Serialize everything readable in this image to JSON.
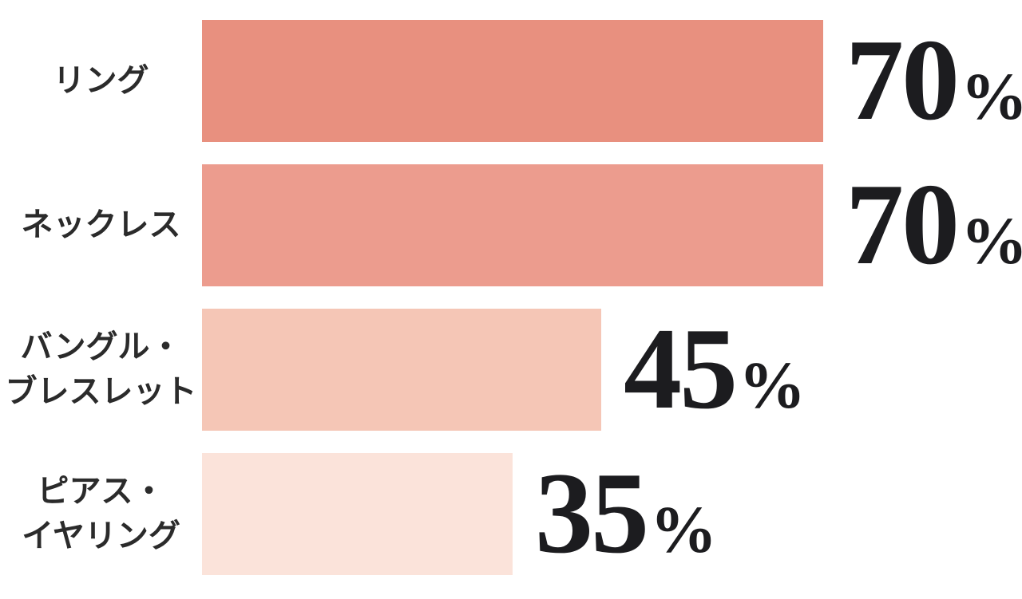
{
  "chart_data": {
    "type": "bar",
    "orientation": "horizontal",
    "title": "",
    "xlabel": "",
    "ylabel": "",
    "xlim": [
      0,
      100
    ],
    "grid": false,
    "axis_lines": "none",
    "legend": "none",
    "unit": "%",
    "value_label_position": "right-of-bar",
    "background_color": "#FFFFFF",
    "label_text_color": "#2B2B2B",
    "value_text_color": "#1C1C1F",
    "categories": [
      "リング",
      "ネックレス",
      "バングル・ブレスレット",
      "ピアス・イヤリング"
    ],
    "rows": [
      {
        "label_lines": [
          "リング"
        ],
        "value": 70,
        "value_text": "70",
        "unit": "%",
        "bar_color": "#E8907F"
      },
      {
        "label_lines": [
          "ネックレス"
        ],
        "value": 70,
        "value_text": "70",
        "unit": "%",
        "bar_color": "#EC9C8E"
      },
      {
        "label_lines": [
          "バングル・",
          "ブレスレット"
        ],
        "value": 45,
        "value_text": "45",
        "unit": "%",
        "bar_color": "#F5C6B6"
      },
      {
        "label_lines": [
          "ピアス・",
          "イヤリング"
        ],
        "value": 35,
        "value_text": "35",
        "unit": "%",
        "bar_color": "#FBE3DA"
      }
    ],
    "values": [
      70,
      70,
      45,
      35
    ]
  }
}
